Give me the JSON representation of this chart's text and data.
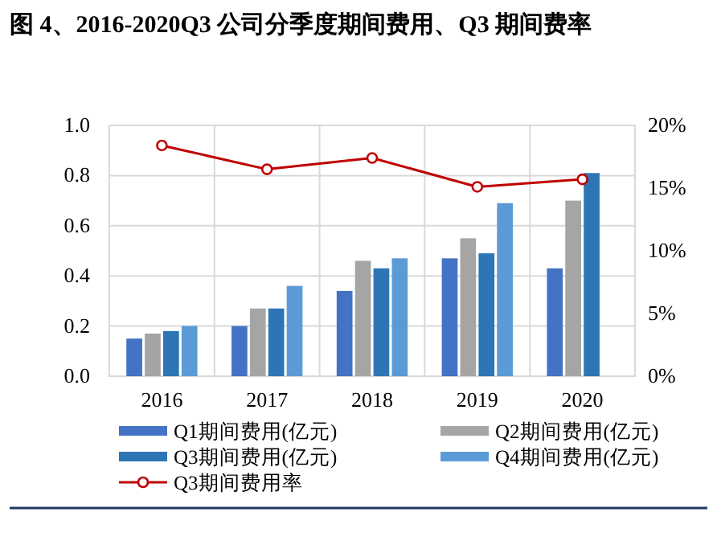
{
  "chart_data": {
    "type": "bar",
    "title": "图 4、2016-2020Q3 公司分季度期间费用、Q3 期间费率",
    "categories": [
      "2016",
      "2017",
      "2018",
      "2019",
      "2020"
    ],
    "series": [
      {
        "name": "Q1期间费用(亿元)",
        "color": "#4472c4",
        "values": [
          0.15,
          0.2,
          0.34,
          0.47,
          0.43
        ]
      },
      {
        "name": "Q2期间费用(亿元)",
        "color": "#a5a5a5",
        "values": [
          0.17,
          0.27,
          0.46,
          0.55,
          0.7
        ]
      },
      {
        "name": "Q3期间费用(亿元)",
        "color": "#2e75b6",
        "values": [
          0.18,
          0.27,
          0.43,
          0.49,
          0.81
        ]
      },
      {
        "name": "Q4期间费用(亿元)",
        "color": "#5b9bd5",
        "values": [
          0.2,
          0.36,
          0.47,
          0.69,
          null
        ]
      },
      {
        "name": "Q3期间费用率",
        "type": "line",
        "axis": "y2",
        "color": "#c00000",
        "marker": "circle",
        "values": [
          18.4,
          16.5,
          17.4,
          15.1,
          15.7
        ]
      }
    ],
    "ylim": [
      0,
      1
    ],
    "yticks": [
      {
        "value": 0,
        "label": "0.0"
      },
      {
        "value": 0.2,
        "label": "0.2"
      },
      {
        "value": 0.4,
        "label": "0.4"
      },
      {
        "value": 0.6,
        "label": "0.6"
      },
      {
        "value": 0.8,
        "label": "0.8"
      },
      {
        "value": 1,
        "label": "1.0"
      }
    ],
    "y2lim": [
      0,
      20
    ],
    "y2ticks": [
      {
        "value": 0,
        "label": "0%"
      },
      {
        "value": 5,
        "label": "5%"
      },
      {
        "value": 10,
        "label": "10%"
      },
      {
        "value": 15,
        "label": "15%"
      },
      {
        "value": 20,
        "label": "20%"
      }
    ],
    "grid": true,
    "legend": "bottom"
  }
}
